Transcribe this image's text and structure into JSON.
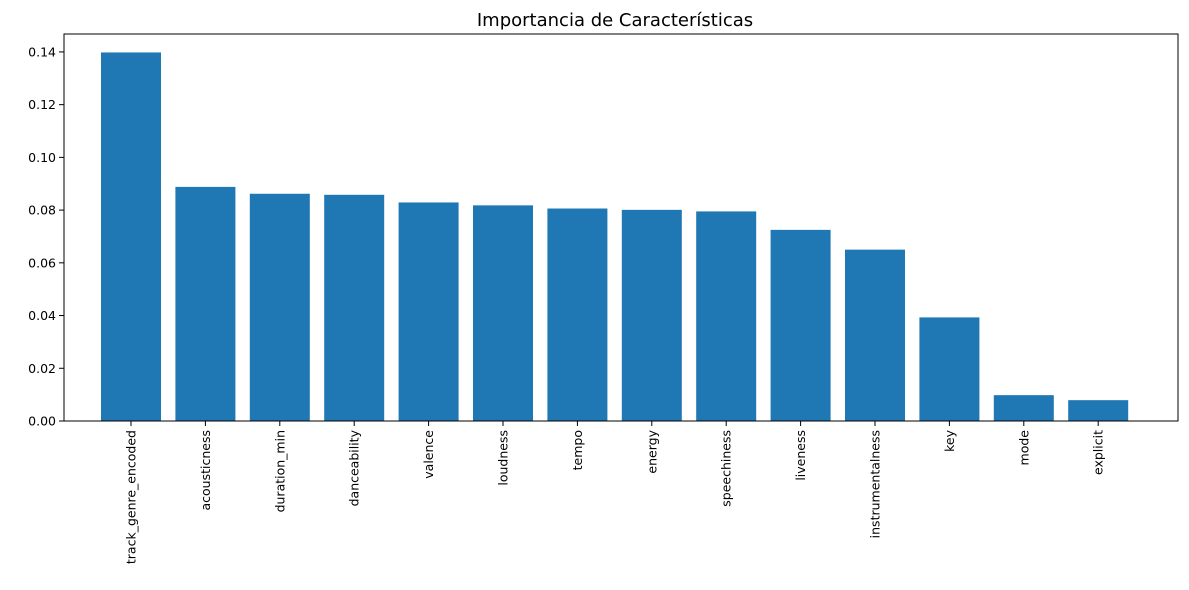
{
  "chart_data": {
    "type": "bar",
    "title": "Importancia de Características",
    "xlabel": "",
    "ylabel": "",
    "categories": [
      "track_genre_encoded",
      "acousticness",
      "duration_min",
      "danceability",
      "valence",
      "loudness",
      "tempo",
      "energy",
      "speechiness",
      "liveness",
      "instrumentalness",
      "key",
      "mode",
      "explicit"
    ],
    "values": [
      0.1398,
      0.0888,
      0.0862,
      0.0858,
      0.0829,
      0.0818,
      0.0806,
      0.0801,
      0.0795,
      0.0725,
      0.065,
      0.0393,
      0.0098,
      0.0079
    ],
    "ylim": [
      0,
      0.1468
    ],
    "yticks": [
      "0.00",
      "0.02",
      "0.04",
      "0.06",
      "0.08",
      "0.10",
      "0.12",
      "0.14"
    ],
    "ytick_values": [
      0,
      0.02,
      0.04,
      0.06,
      0.08,
      0.1,
      0.12,
      0.14
    ],
    "bar_color": "#1f77b4",
    "grid": false,
    "legend": "none"
  }
}
